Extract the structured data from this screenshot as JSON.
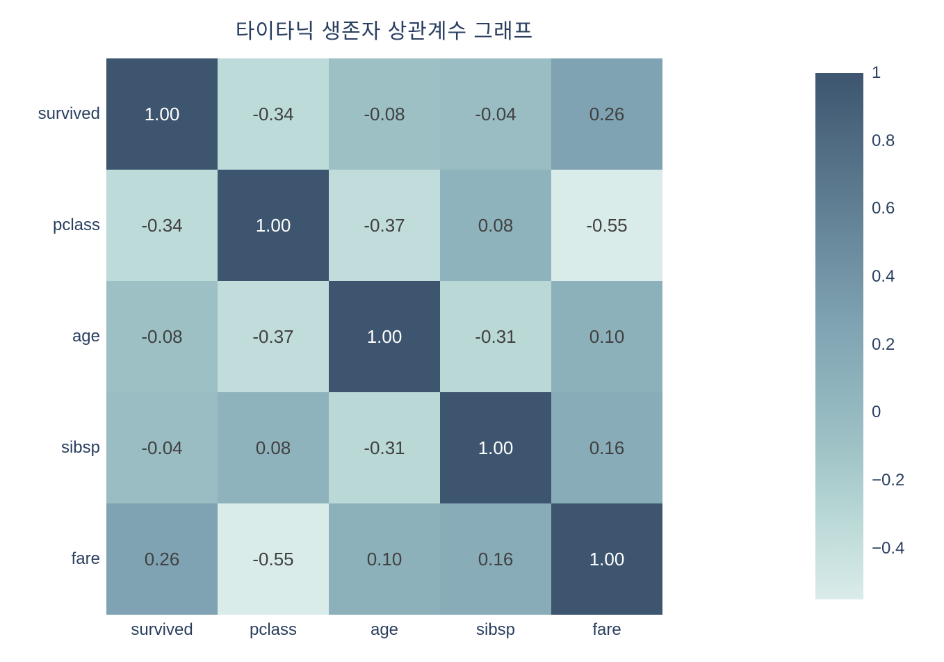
{
  "title": "타이타닉 생존자 상관계수 그래프",
  "colors": {
    "background": "#ffffff",
    "title_text": "#2a3f5f",
    "axis_text": "#2a3f5f",
    "cell_text_dark": "#404040",
    "cell_text_light": "#ffffff",
    "colorscale_min": "#daecea",
    "colorscale_max": "#3d556f"
  },
  "chart_data": {
    "type": "heatmap",
    "title": "타이타닉 생존자 상관계수 그래프",
    "x_categories": [
      "survived",
      "pclass",
      "age",
      "sibsp",
      "fare"
    ],
    "y_categories": [
      "survived",
      "pclass",
      "age",
      "sibsp",
      "fare"
    ],
    "matrix": [
      [
        1.0,
        -0.34,
        -0.08,
        -0.04,
        0.26
      ],
      [
        -0.34,
        1.0,
        -0.37,
        0.08,
        -0.55
      ],
      [
        -0.08,
        -0.37,
        1.0,
        -0.31,
        0.1
      ],
      [
        -0.04,
        0.08,
        -0.31,
        1.0,
        0.16
      ],
      [
        0.26,
        -0.55,
        0.1,
        0.16,
        1.0
      ]
    ],
    "value_format_decimals": 2,
    "zmin": -0.55,
    "zmax": 1,
    "colorscale": [
      {
        "t": 0.0,
        "color": "#daecea"
      },
      {
        "t": 0.155,
        "color": "#b9d8d6"
      },
      {
        "t": 0.303,
        "color": "#9cc0c4"
      },
      {
        "t": 0.419,
        "color": "#8db1bb"
      },
      {
        "t": 0.523,
        "color": "#7fa3b2"
      },
      {
        "t": 1.0,
        "color": "#3d556f"
      }
    ],
    "light_text_threshold": 0.7,
    "grid": false,
    "legend_position": "right",
    "colorbar": {
      "tick_labels": [
        "1",
        "0.8",
        "0.6",
        "0.4",
        "0.2",
        "0",
        "−0.2",
        "−0.4"
      ],
      "tick_values": [
        1,
        0.8,
        0.6,
        0.4,
        0.2,
        0,
        -0.2,
        -0.4
      ]
    }
  }
}
